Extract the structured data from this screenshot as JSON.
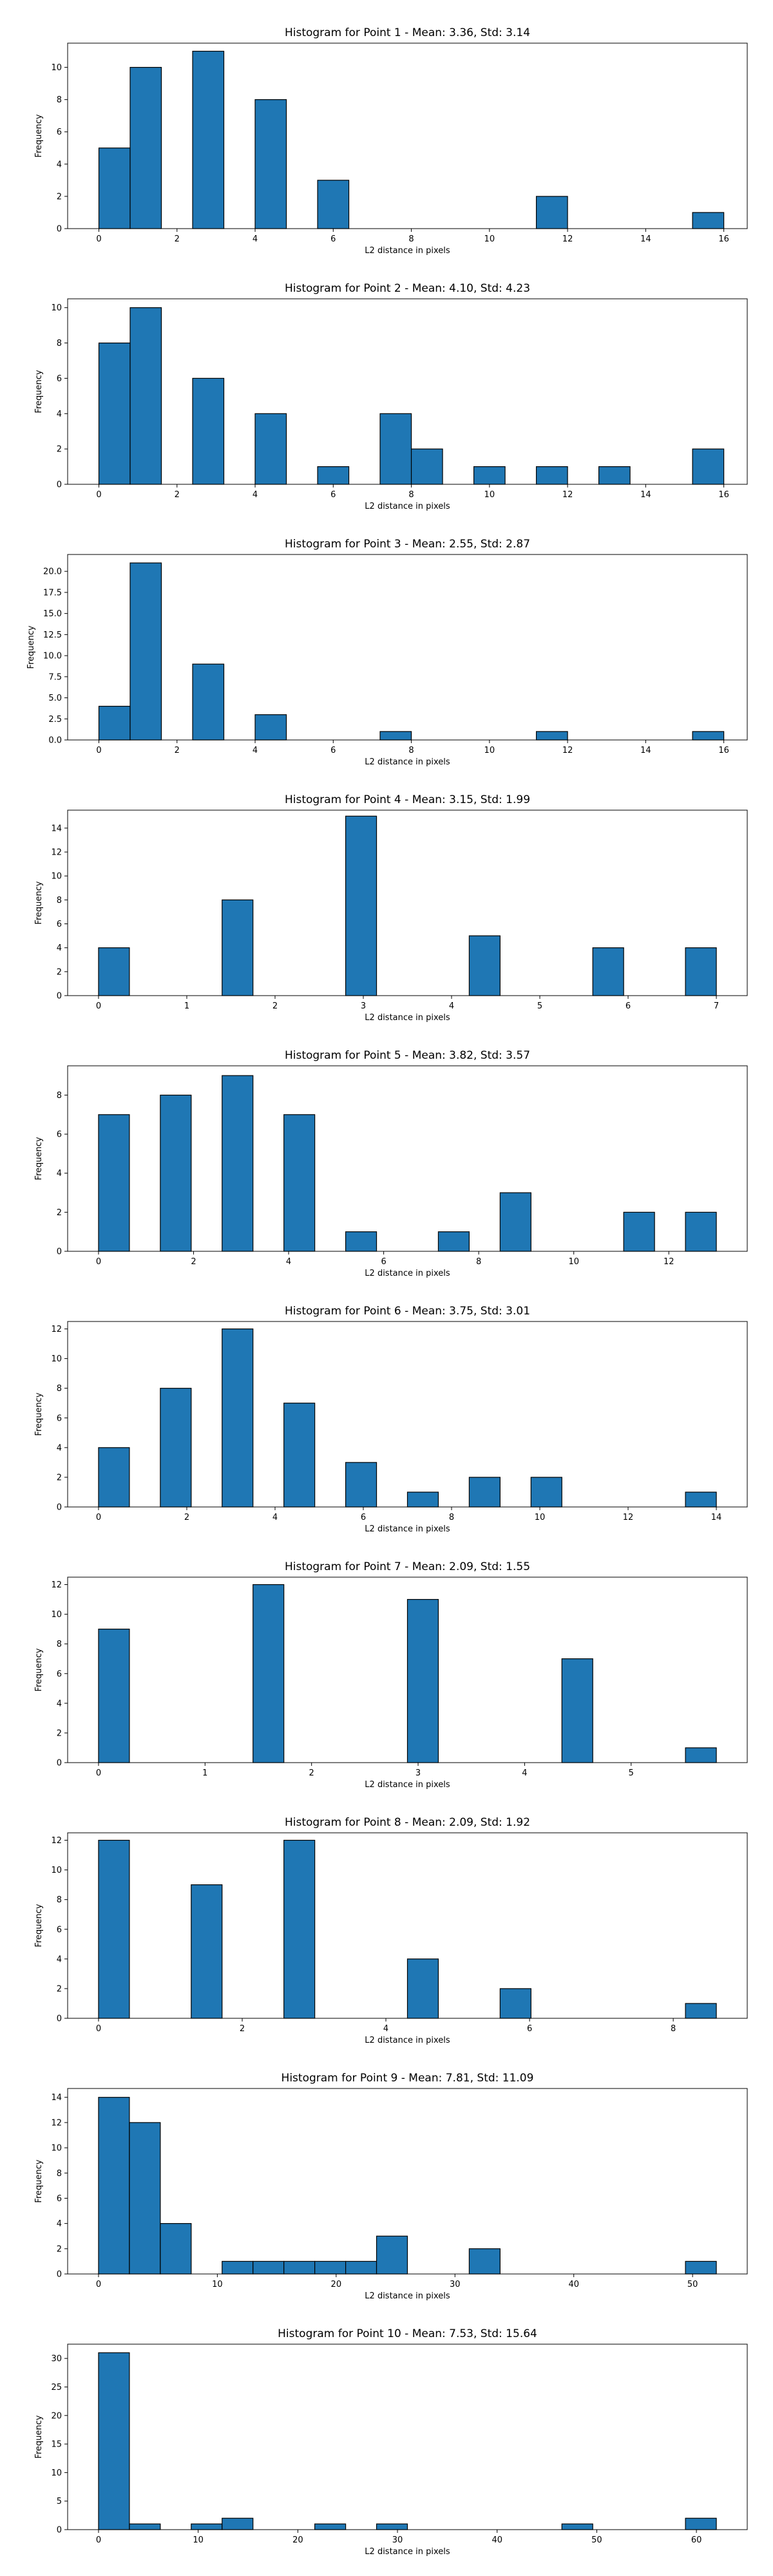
{
  "chart_data": [
    {
      "type": "bar",
      "title": "Histogram for Point 1 - Mean: 3.36, Std: 3.14",
      "xlabel": "L2 distance in pixels",
      "ylabel": "Frequency",
      "xlim": [
        -0.8,
        16.6
      ],
      "ylim": [
        0,
        11.5
      ],
      "xticks": [
        0,
        2,
        4,
        6,
        8,
        10,
        12,
        14,
        16
      ],
      "yticks": [
        0,
        2,
        4,
        6,
        8,
        10
      ],
      "bin_edges": [
        0,
        0.8,
        1.6,
        2.4,
        3.2,
        4.0,
        4.8,
        5.6,
        6.4,
        7.2,
        8.0,
        8.8,
        9.6,
        10.4,
        11.2,
        12.0,
        12.8,
        13.6,
        14.4,
        15.2,
        16.0
      ],
      "counts": [
        5,
        10,
        0,
        11,
        0,
        8,
        0,
        3,
        0,
        0,
        0,
        0,
        0,
        0,
        2,
        0,
        0,
        0,
        0,
        1
      ]
    },
    {
      "type": "bar",
      "title": "Histogram for Point 2 - Mean: 4.10, Std: 4.23",
      "xlabel": "L2 distance in pixels",
      "ylabel": "Frequency",
      "xlim": [
        -0.8,
        16.6
      ],
      "ylim": [
        0,
        10.5
      ],
      "xticks": [
        0,
        2,
        4,
        6,
        8,
        10,
        12,
        14,
        16
      ],
      "yticks": [
        0,
        2,
        4,
        6,
        8,
        10
      ],
      "bin_edges": [
        0,
        0.8,
        1.6,
        2.4,
        3.2,
        4.0,
        4.8,
        5.6,
        6.4,
        7.2,
        8.0,
        8.8,
        9.6,
        10.4,
        11.2,
        12.0,
        12.8,
        13.6,
        14.4,
        15.2,
        16.0
      ],
      "counts": [
        8,
        10,
        0,
        6,
        0,
        4,
        0,
        1,
        0,
        4,
        2,
        0,
        1,
        0,
        1,
        0,
        1,
        0,
        0,
        2
      ]
    },
    {
      "type": "bar",
      "title": "Histogram for Point 3 - Mean: 2.55, Std: 2.87",
      "xlabel": "L2 distance in pixels",
      "ylabel": "Frequency",
      "xlim": [
        -0.8,
        16.6
      ],
      "ylim": [
        0,
        22
      ],
      "xticks": [
        0,
        2,
        4,
        6,
        8,
        10,
        12,
        14,
        16
      ],
      "yticks": [
        0.0,
        2.5,
        5.0,
        7.5,
        10.0,
        12.5,
        15.0,
        17.5,
        20.0
      ],
      "ytick_labels": [
        "0.0",
        "2.5",
        "5.0",
        "7.5",
        "10.0",
        "12.5",
        "15.0",
        "17.5",
        "20.0"
      ],
      "bin_edges": [
        0,
        0.8,
        1.6,
        2.4,
        3.2,
        4.0,
        4.8,
        5.6,
        6.4,
        7.2,
        8.0,
        8.8,
        9.6,
        10.4,
        11.2,
        12.0,
        12.8,
        13.6,
        14.4,
        15.2,
        16.0
      ],
      "counts": [
        4,
        21,
        0,
        9,
        0,
        3,
        0,
        0,
        0,
        1,
        0,
        0,
        0,
        0,
        1,
        0,
        0,
        0,
        0,
        1
      ]
    },
    {
      "type": "bar",
      "title": "Histogram for Point 4 - Mean: 3.15, Std: 1.99",
      "xlabel": "L2 distance in pixels",
      "ylabel": "Frequency",
      "xlim": [
        -0.35,
        7.35
      ],
      "ylim": [
        0,
        15.5
      ],
      "xticks": [
        0,
        1,
        2,
        3,
        4,
        5,
        6,
        7
      ],
      "yticks": [
        0,
        2,
        4,
        6,
        8,
        10,
        12,
        14
      ],
      "bin_edges": [
        0,
        0.35,
        0.7,
        1.05,
        1.4,
        1.75,
        2.1,
        2.45,
        2.8,
        3.15,
        3.5,
        3.85,
        4.2,
        4.55,
        4.9,
        5.25,
        5.6,
        5.95,
        6.3,
        6.65,
        7.0
      ],
      "counts": [
        4,
        0,
        0,
        0,
        8,
        0,
        0,
        0,
        15,
        0,
        0,
        0,
        5,
        0,
        0,
        0,
        4,
        0,
        0,
        4
      ]
    },
    {
      "type": "bar",
      "title": "Histogram for Point 5 - Mean: 3.82, Std: 3.57",
      "xlabel": "L2 distance in pixels",
      "ylabel": "Frequency",
      "xlim": [
        -0.65,
        13.65
      ],
      "ylim": [
        0,
        9.5
      ],
      "xticks": [
        0,
        2,
        4,
        6,
        8,
        10,
        12
      ],
      "yticks": [
        0,
        2,
        4,
        6,
        8
      ],
      "bin_edges": [
        0,
        0.65,
        1.3,
        1.95,
        2.6,
        3.25,
        3.9,
        4.55,
        5.2,
        5.85,
        6.5,
        7.15,
        7.8,
        8.45,
        9.1,
        9.75,
        10.4,
        11.05,
        11.7,
        12.35,
        13.0
      ],
      "counts": [
        7,
        0,
        8,
        0,
        9,
        0,
        7,
        0,
        1,
        0,
        0,
        1,
        0,
        3,
        0,
        0,
        0,
        2,
        0,
        2
      ]
    },
    {
      "type": "bar",
      "title": "Histogram for Point 6 - Mean: 3.75, Std: 3.01",
      "xlabel": "L2 distance in pixels",
      "ylabel": "Frequency",
      "xlim": [
        -0.7,
        14.7
      ],
      "ylim": [
        0,
        12.5
      ],
      "xticks": [
        0,
        2,
        4,
        6,
        8,
        10,
        12,
        14
      ],
      "yticks": [
        0,
        2,
        4,
        6,
        8,
        10,
        12
      ],
      "bin_edges": [
        0,
        0.7,
        1.4,
        2.1,
        2.8,
        3.5,
        4.2,
        4.9,
        5.6,
        6.3,
        7.0,
        7.7,
        8.4,
        9.1,
        9.8,
        10.5,
        11.2,
        11.9,
        12.6,
        13.3,
        14.0
      ],
      "counts": [
        4,
        0,
        8,
        0,
        12,
        0,
        7,
        0,
        3,
        0,
        1,
        0,
        2,
        0,
        2,
        0,
        0,
        0,
        0,
        1
      ]
    },
    {
      "type": "bar",
      "title": "Histogram for Point 7 - Mean: 2.09, Std: 1.55",
      "xlabel": "L2 distance in pixels",
      "ylabel": "Frequency",
      "xlim": [
        -0.29,
        6.09
      ],
      "ylim": [
        0,
        12.5
      ],
      "xticks": [
        0,
        1,
        2,
        3,
        4,
        5
      ],
      "yticks": [
        0,
        2,
        4,
        6,
        8,
        10,
        12
      ],
      "bin_edges": [
        0,
        0.29,
        0.58,
        0.87,
        1.16,
        1.45,
        1.74,
        2.03,
        2.32,
        2.61,
        2.9,
        3.19,
        3.48,
        3.77,
        4.06,
        4.35,
        4.64,
        4.93,
        5.22,
        5.51,
        5.8
      ],
      "counts": [
        9,
        0,
        0,
        0,
        0,
        12,
        0,
        0,
        0,
        0,
        11,
        0,
        0,
        0,
        0,
        7,
        0,
        0,
        0,
        1
      ]
    },
    {
      "type": "bar",
      "title": "Histogram for Point 8 - Mean: 2.09, Std: 1.92",
      "xlabel": "L2 distance in pixels",
      "ylabel": "Frequency",
      "xlim": [
        -0.43,
        9.03
      ],
      "ylim": [
        0,
        12.5
      ],
      "xticks": [
        0,
        2,
        4,
        6,
        8
      ],
      "yticks": [
        0,
        2,
        4,
        6,
        8,
        10,
        12
      ],
      "bin_edges": [
        0,
        0.43,
        0.86,
        1.29,
        1.72,
        2.15,
        2.58,
        3.01,
        3.44,
        3.87,
        4.3,
        4.73,
        5.16,
        5.59,
        6.02,
        6.45,
        6.88,
        7.31,
        7.74,
        8.17,
        8.6
      ],
      "counts": [
        12,
        0,
        0,
        9,
        0,
        0,
        12,
        0,
        0,
        0,
        4,
        0,
        0,
        2,
        0,
        0,
        0,
        0,
        0,
        1
      ]
    },
    {
      "type": "bar",
      "title": "Histogram for Point 9 - Mean: 7.81, Std: 11.09",
      "xlabel": "L2 distance in pixels",
      "ylabel": "Frequency",
      "xlim": [
        -2.6,
        54.6
      ],
      "ylim": [
        0,
        14.7
      ],
      "xticks": [
        0,
        10,
        20,
        30,
        40,
        50
      ],
      "yticks": [
        0,
        2,
        4,
        6,
        8,
        10,
        12,
        14
      ],
      "bin_edges": [
        0,
        2.6,
        5.2,
        7.8,
        10.4,
        13.0,
        15.6,
        18.2,
        20.8,
        23.4,
        26.0,
        28.6,
        31.2,
        33.8,
        36.4,
        39.0,
        41.6,
        44.2,
        46.8,
        49.4,
        52.0
      ],
      "counts": [
        14,
        12,
        4,
        0,
        1,
        1,
        1,
        1,
        1,
        3,
        0,
        0,
        2,
        0,
        0,
        0,
        0,
        0,
        0,
        1
      ]
    },
    {
      "type": "bar",
      "title": "Histogram for Point 10 - Mean: 7.53, Std: 15.64",
      "xlabel": "L2 distance in pixels",
      "ylabel": "Frequency",
      "xlim": [
        -3.1,
        65.1
      ],
      "ylim": [
        0,
        32.5
      ],
      "xticks": [
        0,
        10,
        20,
        30,
        40,
        50,
        60
      ],
      "yticks": [
        0,
        5,
        10,
        15,
        20,
        25,
        30
      ],
      "bin_edges": [
        0,
        3.1,
        6.2,
        9.3,
        12.4,
        15.5,
        18.6,
        21.7,
        24.8,
        27.9,
        31.0,
        34.1,
        37.2,
        40.3,
        43.4,
        46.5,
        49.6,
        52.7,
        55.8,
        58.9,
        62.0
      ],
      "counts": [
        31,
        1,
        0,
        1,
        2,
        0,
        0,
        1,
        0,
        1,
        0,
        0,
        0,
        0,
        0,
        1,
        0,
        0,
        0,
        2
      ]
    }
  ]
}
